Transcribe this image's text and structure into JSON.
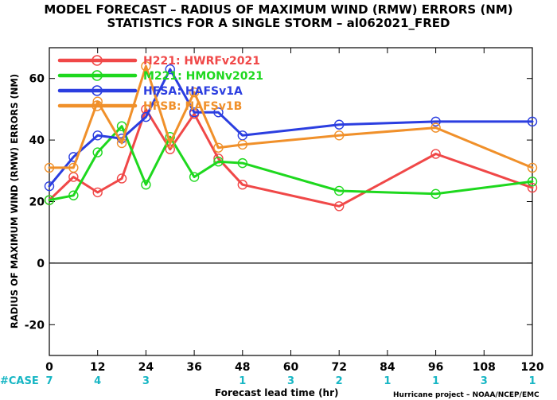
{
  "title_line1": "MODEL FORECAST – RADIUS OF MAXIMUM WIND (RMW) ERRORS (NM)",
  "title_line2": "STATISTICS FOR A SINGLE STORM – al062021_FRED",
  "case_label": "#CASE",
  "footer_xlabel": "Forecast lead time (hr)",
  "credit": "Hurricane project – NOAA/NCEP/EMC",
  "chart_data": {
    "type": "line",
    "title": "MODEL FORECAST – RADIUS OF MAXIMUM WIND (RMW) ERRORS (NM)",
    "subtitle": "STATISTICS FOR A SINGLE STORM – al062021_FRED",
    "xlabel": "Forecast lead time (hr)",
    "ylabel": "RADIUS OF MAXIMUM WIND (RMW) ERRORS (NM)",
    "xlim": [
      0,
      120
    ],
    "ylim": [
      -30,
      70
    ],
    "xticks": [
      0,
      12,
      24,
      36,
      48,
      60,
      72,
      84,
      96,
      108,
      120
    ],
    "yticks": [
      -20,
      0,
      20,
      40,
      60
    ],
    "ytick_labels": [
      "-20",
      "0",
      "20",
      "40",
      "60"
    ],
    "zero_line": true,
    "grid": false,
    "legend_position": "top-left",
    "series": [
      {
        "name": "H221: HWRFv2021",
        "color": "#f04848",
        "x": [
          0,
          6,
          12,
          18,
          24,
          30,
          36,
          42,
          48,
          72,
          96,
          120
        ],
        "values": [
          20.5,
          28,
          23,
          27.5,
          50,
          37,
          48.5,
          34,
          25.5,
          18.5,
          35.5,
          24.5
        ]
      },
      {
        "name": "M221: HMONv2021",
        "color": "#1ed81e",
        "x": [
          0,
          6,
          12,
          18,
          24,
          30,
          36,
          42,
          48,
          72,
          96,
          120
        ],
        "values": [
          20.5,
          22,
          36,
          44.5,
          25.5,
          41,
          28,
          33,
          32.5,
          23.5,
          22.5,
          26.5
        ]
      },
      {
        "name": "HFSA: HAFSv1A",
        "color": "#2b3ee0",
        "x": [
          0,
          6,
          12,
          18,
          24,
          30,
          36,
          42,
          48,
          72,
          96,
          120
        ],
        "values": [
          25,
          34.5,
          41.5,
          40.5,
          47.5,
          63,
          49,
          49,
          41.5,
          45,
          46,
          46
        ]
      },
      {
        "name": "HFSB: HAFSv1B",
        "color": "#f0902a",
        "x": [
          0,
          6,
          12,
          18,
          24,
          30,
          36,
          42,
          48,
          72,
          96,
          120
        ],
        "values": [
          31,
          31,
          52.5,
          39,
          64,
          39,
          55.5,
          37.5,
          38.5,
          41.5,
          44,
          31
        ]
      }
    ],
    "cases": {
      "x": [
        0,
        12,
        24,
        48,
        60,
        72,
        84,
        96,
        108,
        120
      ],
      "labels": [
        "7",
        "4",
        "3",
        "1",
        "3",
        "2",
        "1",
        "1",
        "3",
        "1"
      ]
    }
  }
}
